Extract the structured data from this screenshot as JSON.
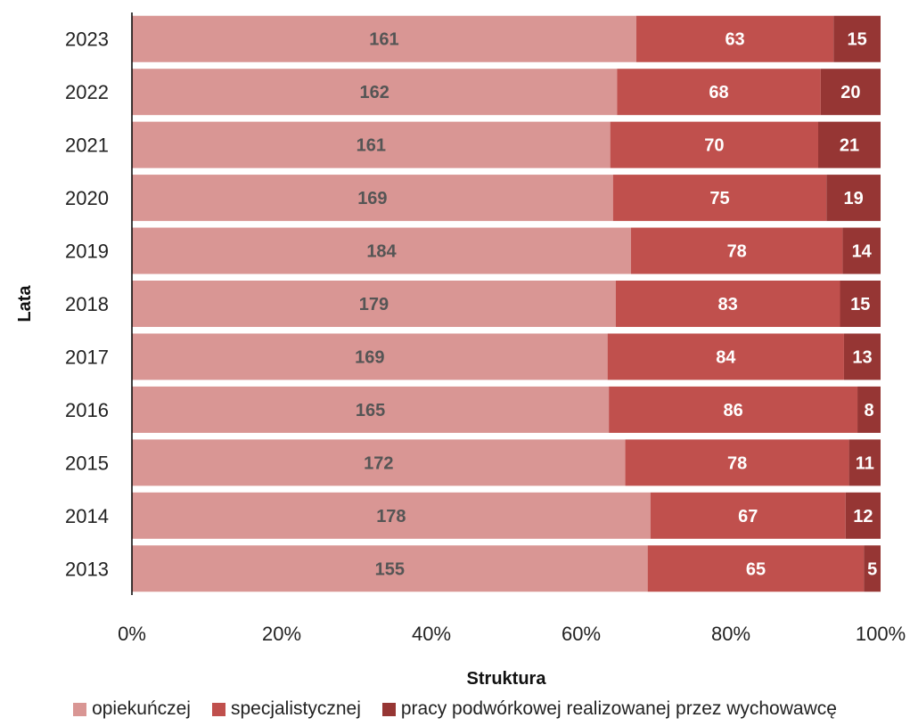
{
  "chart_data": {
    "type": "bar",
    "orientation": "horizontal",
    "stacked": "percent",
    "categories": [
      "2023",
      "2022",
      "2021",
      "2020",
      "2019",
      "2018",
      "2017",
      "2016",
      "2015",
      "2014",
      "2013"
    ],
    "series": [
      {
        "name": "opiekuńczej",
        "color": "#d99694",
        "label_color": "#555555",
        "values": [
          161,
          162,
          161,
          169,
          184,
          179,
          169,
          165,
          172,
          178,
          155
        ]
      },
      {
        "name": "specjalistycznej",
        "color": "#c0504d",
        "label_color": "#ffffff",
        "values": [
          63,
          68,
          70,
          75,
          78,
          83,
          84,
          86,
          78,
          67,
          65
        ]
      },
      {
        "name": "pracy podwórkowej realizowanej przez wychowawcę",
        "color": "#963634",
        "label_color": "#ffffff",
        "values": [
          15,
          20,
          21,
          19,
          14,
          15,
          13,
          8,
          11,
          12,
          5
        ]
      }
    ],
    "xlabel": "Struktura",
    "ylabel": "Lata",
    "x_ticks": [
      "0%",
      "20%",
      "40%",
      "60%",
      "80%",
      "100%"
    ],
    "xlim": [
      0,
      100
    ],
    "grid": false,
    "legend_position": "bottom"
  }
}
